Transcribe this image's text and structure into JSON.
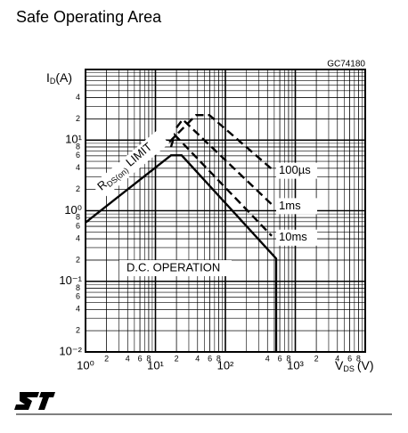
{
  "page_title": "Safe Operating Area",
  "chart_data": {
    "type": "line",
    "code": "GC74180",
    "ylabel": [
      "I",
      "D",
      "(A)"
    ],
    "xlabel": [
      "V",
      "DS",
      "(V)"
    ],
    "annotations": {
      "rds": [
        "R",
        "DS(on)",
        "LIMIT"
      ],
      "dc": "D.C. OPERATION"
    },
    "xlog": true,
    "ylog": true,
    "grid": true,
    "color": "#000000",
    "xlim": [
      1,
      10000
    ],
    "ylim": [
      0.01,
      100
    ],
    "xticks": [
      {
        "value": 1,
        "label": "10⁰"
      },
      2,
      4,
      6,
      8,
      {
        "value": 10,
        "label": "10¹"
      },
      {
        "value": 20,
        "label": "2"
      },
      {
        "value": 40,
        "label": "4"
      },
      {
        "value": 60,
        "label": "6"
      },
      {
        "value": 80,
        "label": "8"
      },
      {
        "value": 100,
        "label": "10²"
      },
      {
        "value": 400,
        "label": "4"
      },
      {
        "value": 600,
        "label": "6"
      },
      {
        "value": 800,
        "label": "8"
      },
      {
        "value": 1000,
        "label": "10³"
      },
      {
        "value": 2000,
        "label": "2"
      },
      {
        "value": 4000,
        "label": "4"
      },
      {
        "value": 6000,
        "label": "6"
      },
      {
        "value": 8000,
        "label": "8"
      }
    ],
    "yticks": [
      {
        "value": 0.01,
        "label": "10⁻²"
      },
      {
        "value": 0.02,
        "label": "2"
      },
      {
        "value": 0.04,
        "label": "4"
      },
      {
        "value": 0.06,
        "label": "6"
      },
      {
        "value": 0.08,
        "label": "8"
      },
      {
        "value": 0.1,
        "label": "10⁻¹"
      },
      {
        "value": 0.2,
        "label": "2"
      },
      {
        "value": 0.4,
        "label": "4"
      },
      {
        "value": 0.6,
        "label": "6"
      },
      {
        "value": 0.8,
        "label": "8"
      },
      {
        "value": 1,
        "label": "10⁰"
      },
      2,
      4,
      6,
      8,
      {
        "value": 10,
        "label": "10¹"
      },
      {
        "value": 20,
        "label": "2"
      },
      {
        "value": 40,
        "label": "4"
      }
    ],
    "series": [
      {
        "name": "100µs",
        "dash": true,
        "x": [
          15.8,
          38,
          59,
          460
        ],
        "values": [
          9.4,
          22.6,
          22.6,
          3.9
        ]
      },
      {
        "name": "1ms",
        "dash": true,
        "x": [
          20,
          24.5,
          460
        ],
        "values": [
          15,
          19.6,
          1.23
        ]
      },
      {
        "name": "10ms",
        "dash": true,
        "x": [
          16.7,
          18.8,
          460
        ],
        "values": [
          8,
          11.9,
          0.44
        ]
      },
      {
        "name": "D.C. OPERATION",
        "dash": false,
        "x": [
          1,
          16.7,
          23.7,
          532,
          532
        ],
        "values": [
          0.68,
          6.1,
          6.1,
          0.21,
          0.01
        ]
      }
    ]
  }
}
